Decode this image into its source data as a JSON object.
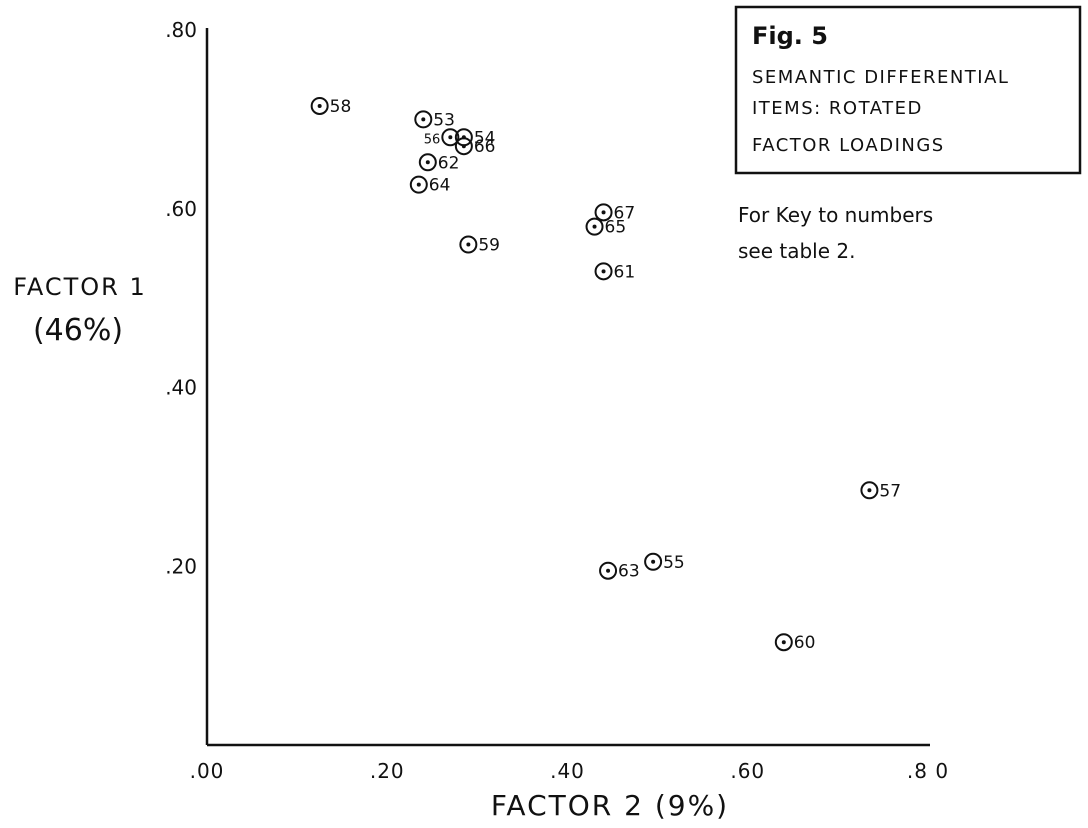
{
  "chart_data": {
    "type": "scatter",
    "title": "Fig. 5",
    "subtitle": [
      "SEMANTIC DIFFERENTIAL",
      "ITEMS: ROTATED",
      "FACTOR LOADINGS"
    ],
    "note": [
      "For Key to numbers",
      "see table 2."
    ],
    "xlabel": "FACTOR 2 (9%)",
    "ylabel": [
      "FACTOR 1",
      "(46%)"
    ],
    "xlim": [
      0,
      0.8
    ],
    "ylim": [
      0,
      0.8
    ],
    "x_ticks": [
      {
        "value": 0.0,
        "label": ".00"
      },
      {
        "value": 0.2,
        "label": ".20"
      },
      {
        "value": 0.4,
        "label": ".40"
      },
      {
        "value": 0.6,
        "label": ".60"
      },
      {
        "value": 0.8,
        "label": ".8 0"
      }
    ],
    "y_ticks": [
      {
        "value": 0.2,
        "label": ".20"
      },
      {
        "value": 0.4,
        "label": ".40"
      },
      {
        "value": 0.6,
        "label": ".60"
      },
      {
        "value": 0.8,
        "label": ".80"
      }
    ],
    "grid": false,
    "points": [
      {
        "label": "58",
        "x": 0.125,
        "y": 0.715,
        "label_side": "right"
      },
      {
        "label": "53",
        "x": 0.24,
        "y": 0.7,
        "label_side": "right"
      },
      {
        "label": "56",
        "x": 0.27,
        "y": 0.68,
        "label_side": "left"
      },
      {
        "label": "54",
        "x": 0.285,
        "y": 0.68,
        "label_side": "right"
      },
      {
        "label": "66",
        "x": 0.285,
        "y": 0.67,
        "label_side": "right"
      },
      {
        "label": "62",
        "x": 0.245,
        "y": 0.652,
        "label_side": "right"
      },
      {
        "label": "64",
        "x": 0.235,
        "y": 0.627,
        "label_side": "right"
      },
      {
        "label": "67",
        "x": 0.44,
        "y": 0.596,
        "label_side": "right"
      },
      {
        "label": "65",
        "x": 0.43,
        "y": 0.58,
        "label_side": "right"
      },
      {
        "label": "59",
        "x": 0.29,
        "y": 0.56,
        "label_side": "right"
      },
      {
        "label": "61",
        "x": 0.44,
        "y": 0.53,
        "label_side": "right"
      },
      {
        "label": "57",
        "x": 0.735,
        "y": 0.285,
        "label_side": "right"
      },
      {
        "label": "55",
        "x": 0.495,
        "y": 0.205,
        "label_side": "right"
      },
      {
        "label": "63",
        "x": 0.445,
        "y": 0.195,
        "label_side": "right"
      },
      {
        "label": "60",
        "x": 0.64,
        "y": 0.115,
        "label_side": "right"
      }
    ]
  }
}
